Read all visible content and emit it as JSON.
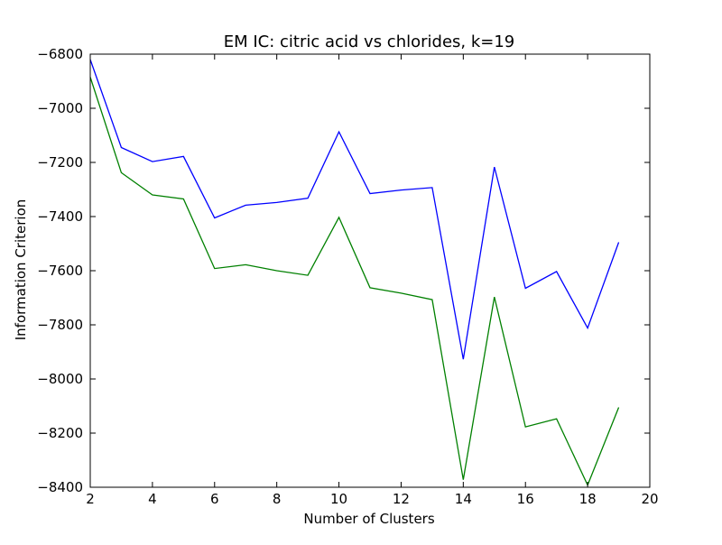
{
  "chart_data": {
    "type": "line",
    "title": "EM IC: citric acid vs chlorides, k=19",
    "xlabel": "Number of Clusters",
    "ylabel": "Information Criterion",
    "xlim": [
      2,
      20
    ],
    "ylim": [
      -8400,
      -6800
    ],
    "grid": false,
    "x_ticks": [
      2,
      4,
      6,
      8,
      10,
      12,
      14,
      16,
      18,
      20
    ],
    "y_ticks": [
      -6800,
      -7000,
      -7200,
      -7400,
      -7600,
      -7800,
      -8000,
      -8200,
      -8400
    ],
    "x_tick_labels": [
      "2",
      "4",
      "6",
      "8",
      "10",
      "12",
      "14",
      "16",
      "18",
      "20"
    ],
    "y_tick_labels": [
      "−6800",
      "−7000",
      "−7200",
      "−7400",
      "−7600",
      "−7800",
      "−8000",
      "−8200",
      "−8400"
    ],
    "x": [
      2,
      3,
      4,
      5,
      6,
      7,
      8,
      9,
      10,
      11,
      12,
      13,
      14,
      15,
      16,
      17,
      18,
      19
    ],
    "series": [
      {
        "color": "#0000ff",
        "values": [
          -6820,
          -7145,
          -7197,
          -7178,
          -7405,
          -7358,
          -7348,
          -7332,
          -7087,
          -7315,
          -7302,
          -7293,
          -7927,
          -7217,
          -7665,
          -7603,
          -7812,
          -7495
        ]
      },
      {
        "color": "#008000",
        "values": [
          -6885,
          -7238,
          -7320,
          -7335,
          -7592,
          -7578,
          -7600,
          -7617,
          -7403,
          -7663,
          -7683,
          -7707,
          -8372,
          -7697,
          -8177,
          -8147,
          -8392,
          -8105
        ]
      }
    ]
  }
}
